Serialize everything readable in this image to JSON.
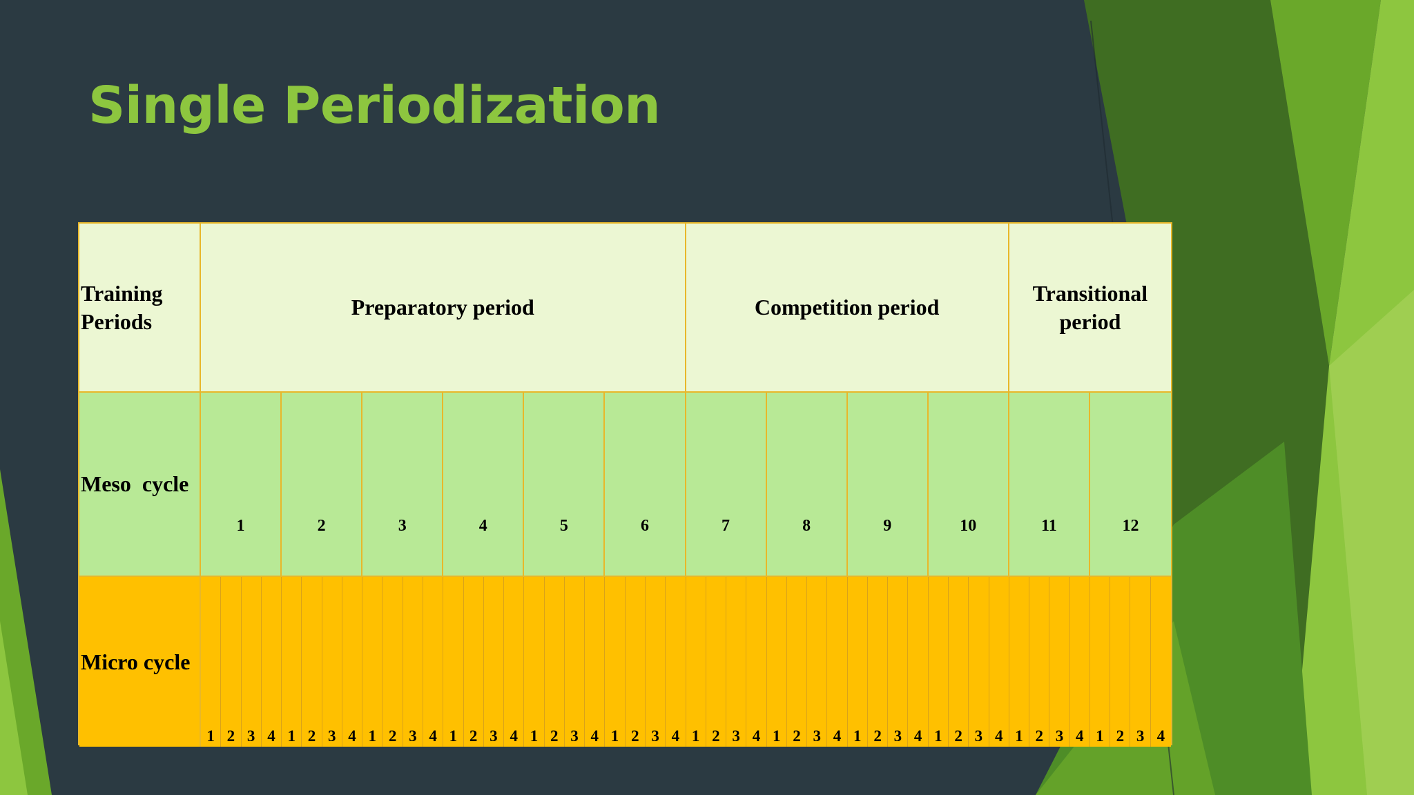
{
  "slide": {
    "title": "Single Periodization"
  },
  "table": {
    "row_labels": {
      "periods": "Training Periods",
      "meso": "Meso  cycle",
      "micro": "Micro cycle"
    },
    "periods": [
      {
        "label": "Preparatory period",
        "span": 6
      },
      {
        "label": "Competition period",
        "span": 4
      },
      {
        "label": "Transitional period",
        "span": 2
      }
    ],
    "meso_cycles": [
      "1",
      "2",
      "3",
      "4",
      "5",
      "6",
      "7",
      "8",
      "9",
      "10",
      "11",
      "12"
    ],
    "micro_per_meso": [
      "1",
      "2",
      "3",
      "4"
    ]
  },
  "colors": {
    "background": "#2b3a42",
    "title": "#8dc63f",
    "period_row": "#ecf7d3",
    "meso_row": "#b8e996",
    "micro_row": "#ffc000",
    "grid_lines": "#e8b72a"
  }
}
